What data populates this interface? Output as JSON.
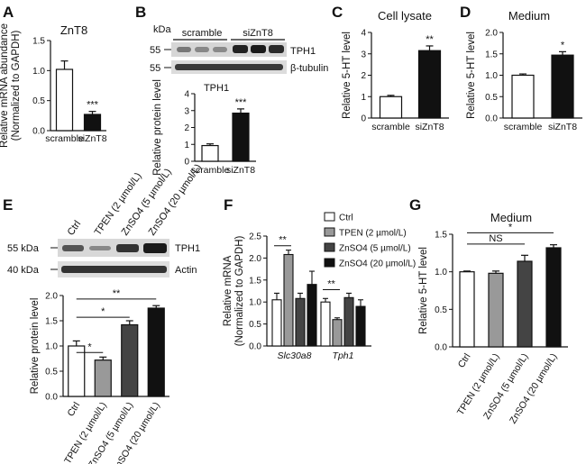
{
  "panels": [
    {
      "id": "A",
      "letter": "A",
      "title": "ZnT8",
      "ylabel": [
        "Relative mRNA abundance",
        "(Normalized to GAPDH)"
      ],
      "ylim": [
        0,
        1.5
      ],
      "ticks": [
        0,
        0.5,
        1.0,
        1.5
      ],
      "tick_labels": [
        "0.0",
        "0.5",
        "1.0",
        "1.5"
      ],
      "rotate": false,
      "categories": [
        "scramble",
        "siZnT8"
      ],
      "values": [
        1.02,
        0.27
      ],
      "errors": [
        0.14,
        0.05
      ],
      "fills": [
        "#ffffff",
        "#111111"
      ],
      "sig": [
        "",
        "***"
      ]
    },
    {
      "id": "B",
      "letter": "B",
      "title": "TPH1",
      "ylabel": [
        "Relative protein level"
      ],
      "ylim": [
        0,
        4
      ],
      "ticks": [
        0,
        1,
        2,
        3,
        4
      ],
      "tick_labels": [
        "0",
        "1",
        "2",
        "3",
        "4"
      ],
      "rotate": false,
      "categories": [
        "scramble",
        "siZnT8"
      ],
      "values": [
        0.93,
        2.85
      ],
      "errors": [
        0.1,
        0.25
      ],
      "fills": [
        "#ffffff",
        "#111111"
      ],
      "sig": [
        "",
        "***"
      ]
    },
    {
      "id": "C",
      "letter": "C",
      "title": "Cell lysate",
      "ylabel": [
        "Relative 5-HT level"
      ],
      "ylim": [
        0,
        4
      ],
      "ticks": [
        0,
        1,
        2,
        3,
        4
      ],
      "tick_labels": [
        "0",
        "1",
        "2",
        "3",
        "4"
      ],
      "rotate": false,
      "categories": [
        "scramble",
        "siZnT8"
      ],
      "values": [
        1.0,
        3.15
      ],
      "errors": [
        0.06,
        0.22
      ],
      "fills": [
        "#ffffff",
        "#111111"
      ],
      "sig": [
        "",
        "**"
      ]
    },
    {
      "id": "D",
      "letter": "D",
      "title": "Medium",
      "ylabel": [
        "Relative 5-HT level"
      ],
      "ylim": [
        0,
        2
      ],
      "ticks": [
        0,
        0.5,
        1.0,
        1.5,
        2.0
      ],
      "tick_labels": [
        "0.0",
        "0.5",
        "1.0",
        "1.5",
        "2.0"
      ],
      "rotate": false,
      "categories": [
        "scramble",
        "siZnT8"
      ],
      "values": [
        1.0,
        1.47
      ],
      "errors": [
        0.03,
        0.08
      ],
      "fills": [
        "#ffffff",
        "#111111"
      ],
      "sig": [
        "",
        "*"
      ]
    },
    {
      "id": "E",
      "letter": "E",
      "title": "",
      "ylabel": [
        "Relative protein level"
      ],
      "ylim": [
        0,
        2.0
      ],
      "ticks": [
        0,
        0.5,
        1.0,
        1.5,
        2.0
      ],
      "tick_labels": [
        "0.0",
        "0.5",
        "1.0",
        "1.5",
        "2.0"
      ],
      "rotate": true,
      "categories": [
        "Ctrl",
        "TPEN (2 µmol/L)",
        "ZnSO4 (5 µmol/L)",
        "ZnSO4 (20 µmol/L)"
      ],
      "values": [
        1.0,
        0.72,
        1.42,
        1.75
      ],
      "errors": [
        0.1,
        0.06,
        0.08,
        0.05
      ],
      "fills": [
        "#ffffff",
        "#999999",
        "#444444",
        "#111111"
      ],
      "sig": [
        "",
        "",
        "",
        ""
      ],
      "brackets": [
        {
          "from": 0,
          "to": 1,
          "label": "*",
          "y": 0.87
        },
        {
          "from": 0,
          "to": 2,
          "label": "*",
          "y": 1.57
        },
        {
          "from": 0,
          "to": 3,
          "label": "**",
          "y": 1.93
        }
      ]
    },
    {
      "id": "G",
      "letter": "G",
      "title": "Medium",
      "ylabel": [
        "Relative 5-HT level"
      ],
      "ylim": [
        0,
        1.5
      ],
      "ticks": [
        0,
        0.5,
        1.0,
        1.5
      ],
      "tick_labels": [
        "0.0",
        "0.5",
        "1.0",
        "1.5"
      ],
      "rotate": true,
      "categories": [
        "Ctrl",
        "TPEN (2 µmol/L)",
        "ZnSO4 (5 µmol/L)",
        "ZnSO4 (20 µmol/L)"
      ],
      "values": [
        1.0,
        0.98,
        1.14,
        1.32
      ],
      "errors": [
        0.01,
        0.03,
        0.08,
        0.04
      ],
      "fills": [
        "#ffffff",
        "#999999",
        "#444444",
        "#111111"
      ],
      "sig": [
        "",
        "",
        "",
        ""
      ],
      "brackets": [
        {
          "from": 0,
          "to": 2,
          "label": "NS",
          "y": 1.37
        },
        {
          "from": 0,
          "to": 3,
          "label": "*",
          "y": 1.52
        }
      ]
    }
  ],
  "chart_data": [
    {
      "type": "bar",
      "panel": "A",
      "title": "ZnT8",
      "categories": [
        "scramble",
        "siZnT8"
      ],
      "values": [
        1.02,
        0.27
      ],
      "errors": [
        0.14,
        0.05
      ],
      "ylabel": "Relative mRNA abundance (Normalized to GAPDH)",
      "ylim": [
        0,
        1.5
      ],
      "grid": false
    },
    {
      "type": "bar",
      "panel": "B",
      "title": "TPH1",
      "categories": [
        "scramble",
        "siZnT8"
      ],
      "values": [
        0.93,
        2.85
      ],
      "errors": [
        0.1,
        0.25
      ],
      "ylabel": "Relative protein level",
      "ylim": [
        0,
        4
      ],
      "grid": false
    },
    {
      "type": "bar",
      "panel": "C",
      "title": "Cell lysate",
      "categories": [
        "scramble",
        "siZnT8"
      ],
      "values": [
        1.0,
        3.15
      ],
      "errors": [
        0.06,
        0.22
      ],
      "ylabel": "Relative 5-HT level",
      "ylim": [
        0,
        4
      ],
      "grid": false
    },
    {
      "type": "bar",
      "panel": "D",
      "title": "Medium",
      "categories": [
        "scramble",
        "siZnT8"
      ],
      "values": [
        1.0,
        1.47
      ],
      "errors": [
        0.03,
        0.08
      ],
      "ylabel": "Relative 5-HT level",
      "ylim": [
        0,
        2
      ],
      "grid": false
    },
    {
      "type": "bar",
      "panel": "E",
      "categories": [
        "Ctrl",
        "TPEN (2 µmol/L)",
        "ZnSO4 (5 µmol/L)",
        "ZnSO4 (20 µmol/L)"
      ],
      "values": [
        1.0,
        0.72,
        1.42,
        1.75
      ],
      "errors": [
        0.1,
        0.06,
        0.08,
        0.05
      ],
      "ylabel": "Relative protein level",
      "ylim": [
        0,
        2.0
      ],
      "grid": false
    },
    {
      "type": "bar",
      "panel": "F",
      "categories": [
        "Slc30a8",
        "Tph1"
      ],
      "series": [
        {
          "name": "Ctrl",
          "values": [
            1.05,
            1.0
          ],
          "errors": [
            0.15,
            0.08
          ]
        },
        {
          "name": "TPEN (2 µmol/L)",
          "values": [
            2.08,
            0.6
          ],
          "errors": [
            0.1,
            0.04
          ]
        },
        {
          "name": "ZnSO4 (5 µmol/L)",
          "values": [
            1.08,
            1.1
          ],
          "errors": [
            0.12,
            0.1
          ]
        },
        {
          "name": "ZnSO4 (20 µmol/L)",
          "values": [
            1.4,
            0.9
          ],
          "errors": [
            0.3,
            0.15
          ]
        }
      ],
      "ylabel": "Relative mRNA (Normalized to GAPDH)",
      "ylim": [
        0,
        2.5
      ],
      "legend": "top-right",
      "grid": false
    },
    {
      "type": "bar",
      "panel": "G",
      "title": "Medium",
      "categories": [
        "Ctrl",
        "TPEN (2 µmol/L)",
        "ZnSO4 (5 µmol/L)",
        "ZnSO4 (20 µmol/L)"
      ],
      "values": [
        1.0,
        0.98,
        1.14,
        1.32
      ],
      "errors": [
        0.01,
        0.03,
        0.08,
        0.04
      ],
      "ylabel": "Relative 5-HT level",
      "ylim": [
        0,
        1.5
      ],
      "grid": false
    }
  ],
  "panelF": {
    "letter": "F",
    "ylabel": [
      "Relative mRNA",
      "(Normalized to GAPDH)"
    ],
    "ylim": [
      0,
      2.5
    ],
    "ticks": [
      0,
      0.5,
      1.0,
      1.5,
      2.0,
      2.5
    ],
    "tick_labels": [
      "0.0",
      "0.5",
      "1.0",
      "1.5",
      "2.0",
      "2.5"
    ],
    "groups": [
      "Slc30a8",
      "Tph1"
    ],
    "series": [
      {
        "name": "Ctrl",
        "fill": "#ffffff",
        "values": [
          1.05,
          1.0
        ],
        "errors": [
          0.15,
          0.08
        ]
      },
      {
        "name": "TPEN (2 µmol/L)",
        "fill": "#999999",
        "values": [
          2.08,
          0.6
        ],
        "errors": [
          0.1,
          0.04
        ]
      },
      {
        "name": "ZnSO4 (5 µmol/L)",
        "fill": "#444444",
        "values": [
          1.08,
          1.1
        ],
        "errors": [
          0.12,
          0.1
        ]
      },
      {
        "name": "ZnSO4 (20 µmol/L)",
        "fill": "#111111",
        "values": [
          1.4,
          0.9
        ],
        "errors": [
          0.3,
          0.15
        ]
      }
    ],
    "brackets": [
      {
        "group": 0,
        "from": 0,
        "to": 1,
        "label": "**",
        "y": 2.28
      },
      {
        "group": 1,
        "from": 0,
        "to": 1,
        "label": "**",
        "y": 1.28
      }
    ]
  },
  "blotB": {
    "kda": "kDa",
    "marker": "55",
    "conditions": [
      "scramble",
      "siZnT8"
    ],
    "bands": [
      "TPH1",
      "β-tubulin"
    ]
  },
  "blotE": {
    "conditions": [
      "Ctrl",
      "TPEN (2 µmol/L)",
      "ZnSO4 (5 µmol/L)",
      "ZnSO4 (20 µmol/L)"
    ],
    "markers": [
      "55 kDa",
      "40 kDa"
    ],
    "bands": [
      "TPH1",
      "Actin"
    ]
  }
}
